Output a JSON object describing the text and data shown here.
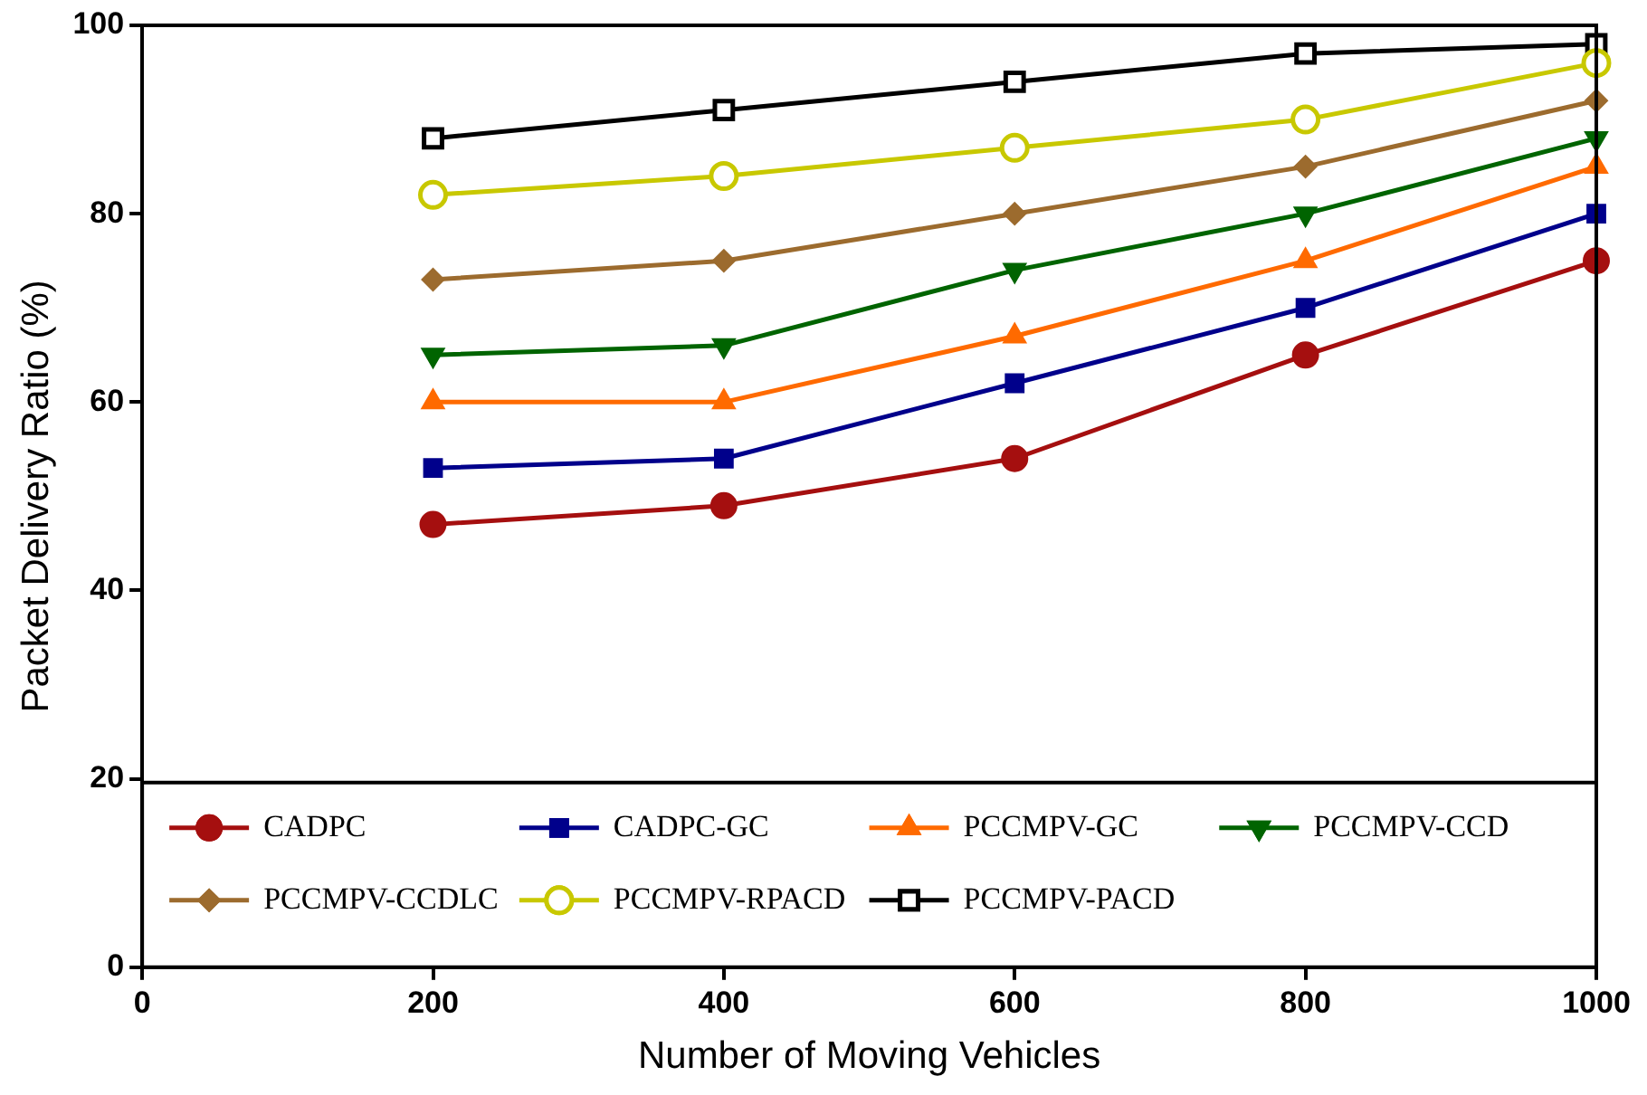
{
  "chart_data": {
    "type": "line",
    "xlabel": "Number of Moving Vehicles",
    "ylabel": "Packet Delivery Ratio (%)",
    "x": [
      200,
      400,
      600,
      800,
      1000
    ],
    "xlim": [
      0,
      1000
    ],
    "xticks": [
      0,
      200,
      400,
      600,
      800,
      1000
    ],
    "ylim": [
      0,
      100
    ],
    "yticks": [
      0,
      20,
      40,
      60,
      80,
      100
    ],
    "grid": false,
    "legend": "bottom",
    "line_style": "solid",
    "series": [
      {
        "name": "CADPC",
        "color": "#a50f0f",
        "marker": "circle",
        "values": [
          47,
          49,
          54,
          65,
          75
        ]
      },
      {
        "name": "CADPC-GC",
        "color": "#00008b",
        "marker": "square",
        "values": [
          53,
          54,
          62,
          70,
          80
        ]
      },
      {
        "name": "PCCMPV-GC",
        "color": "#ff6a00",
        "marker": "triangle",
        "values": [
          60,
          60,
          67,
          75,
          85
        ]
      },
      {
        "name": "PCCMPV-CCD",
        "color": "#006400",
        "marker": "triangle-down",
        "values": [
          65,
          66,
          74,
          80,
          88
        ]
      },
      {
        "name": "PCCMPV-CCDLC",
        "color": "#9c6b2e",
        "marker": "diamond",
        "values": [
          73,
          75,
          80,
          85,
          92
        ]
      },
      {
        "name": "PCCMPV-RPACD",
        "color": "#c8c800",
        "marker": "circle-open",
        "values": [
          82,
          84,
          87,
          90,
          96
        ]
      },
      {
        "name": "PCCMPV-PACD",
        "color": "#000000",
        "marker": "square-open",
        "values": [
          88,
          91,
          94,
          97,
          98
        ]
      }
    ]
  }
}
